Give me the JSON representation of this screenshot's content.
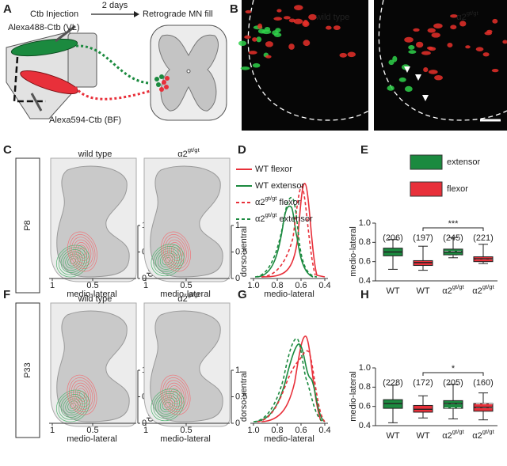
{
  "panel_a": {
    "letter": "A",
    "injection": "Ctb Injection",
    "delay": "2 days",
    "result": "Retrograde MN fill",
    "label_vl": "Alexa488-Ctb (VL)",
    "label_bf": "Alexa594-Ctb (BF)"
  },
  "panel_b": {
    "letter": "B",
    "wild_type": "wild type",
    "mutant": {
      "base": "α2",
      "sup": "gt/gt"
    }
  },
  "rows": [
    {
      "contour": {
        "letter": "C",
        "age": "P8",
        "wild_type": "wild type",
        "mutant": {
          "base": "α2",
          "sup": "gt/gt"
        },
        "x_label": "medio-lateral",
        "y_label": "dorso-ventral",
        "xlim": [
          1,
          0
        ],
        "xticks": [
          1,
          0.5
        ],
        "ylim": [
          0,
          1
        ],
        "yticks": [
          1,
          0.5,
          0
        ]
      },
      "density": {
        "letter": "D",
        "legend": [
          {
            "name": "WT flexor",
            "color": "#e8303a",
            "dashed": false
          },
          {
            "name": "WT extensor",
            "color": "#1b8a3f",
            "dashed": false
          },
          {
            "name": {
              "base": "α2",
              "sup": "gt/gt",
              "tail": " flexor"
            },
            "color": "#e8303a",
            "dashed": true
          },
          {
            "name": {
              "base": "α2",
              "sup": "gt/gt",
              "tail": " extensor"
            },
            "color": "#1b8a3f",
            "dashed": true
          }
        ],
        "x_label": "medio-lateral",
        "xlim": [
          1,
          0.4
        ],
        "xticks": [
          {
            "value": 1,
            "label": "1.0"
          },
          0.8,
          0.6,
          0.4
        ]
      },
      "box": {
        "type": "box",
        "letter": "E",
        "legend": [
          {
            "name": "extensor",
            "color": "#1b8a3f"
          },
          {
            "name": "flexor",
            "color": "#e8303a"
          }
        ],
        "y_label": "medio-lateral",
        "ylim": [
          0.4,
          1
        ],
        "yticks": [
          0.4,
          0.6,
          0.8,
          {
            "value": 1,
            "label": "1.0"
          }
        ],
        "categories": [
          "WT",
          "WT",
          {
            "base": "α2",
            "sup": "gt/gt"
          },
          {
            "base": "α2",
            "sup": "gt/gt"
          }
        ],
        "counts": [
          "(206)",
          "(197)",
          "(245)",
          "(221)"
        ],
        "significance": "***",
        "boxes": [
          {
            "min": 0.52,
            "q1": 0.66,
            "median": 0.7,
            "q3": 0.74,
            "max": 0.83,
            "color": "#1b8a3f",
            "hatched": false
          },
          {
            "min": 0.51,
            "q1": 0.56,
            "median": 0.59,
            "q3": 0.61,
            "max": 0.76,
            "color": "#e8303a",
            "hatched": false
          },
          {
            "min": 0.64,
            "q1": 0.67,
            "median": 0.7,
            "q3": 0.73,
            "max": 0.85,
            "color": "#1b8a3f",
            "hatched": true
          },
          {
            "min": 0.58,
            "q1": 0.6,
            "median": 0.63,
            "q3": 0.65,
            "max": 0.78,
            "color": "#e8303a",
            "hatched": true
          }
        ]
      }
    },
    {
      "contour": {
        "letter": "F",
        "age": "P33",
        "wild_type": "wild type",
        "mutant": {
          "base": "α2",
          "sup": "gt/gt"
        },
        "x_label": "medio-lateral",
        "y_label": "dorso-ventral",
        "xlim": [
          1,
          0
        ],
        "xticks": [
          1,
          0.5
        ],
        "ylim": [
          0,
          1
        ],
        "yticks": [
          1,
          0.5,
          0
        ]
      },
      "density": {
        "letter": "G",
        "x_label": "medio-lateral",
        "xlim": [
          1,
          0.4
        ],
        "xticks": [
          {
            "value": 1,
            "label": "1.0"
          },
          0.8,
          0.6,
          0.4
        ],
        "curve_colors": [
          "#e8303a",
          "#1b8a3f",
          "#e8303a",
          "#1b8a3f"
        ],
        "curve_dashed": [
          false,
          false,
          true,
          true
        ]
      },
      "box": {
        "type": "box",
        "letter": "H",
        "y_label": "medio-lateral",
        "ylim": [
          0.4,
          1
        ],
        "yticks": [
          0.4,
          0.6,
          0.8,
          {
            "value": 1,
            "label": "1.0"
          }
        ],
        "categories": [
          "WT",
          "WT",
          {
            "base": "α2",
            "sup": "gt/gt"
          },
          {
            "base": "α2",
            "sup": "gt/gt"
          }
        ],
        "counts": [
          "(228)",
          "(172)",
          "(205)",
          "(160)"
        ],
        "significance": "*",
        "boxes": [
          {
            "min": 0.43,
            "q1": 0.58,
            "median": 0.63,
            "q3": 0.67,
            "max": 0.82,
            "color": "#1b8a3f",
            "hatched": false
          },
          {
            "min": 0.48,
            "q1": 0.54,
            "median": 0.57,
            "q3": 0.61,
            "max": 0.71,
            "color": "#e8303a",
            "hatched": false
          },
          {
            "min": 0.47,
            "q1": 0.58,
            "median": 0.63,
            "q3": 0.66,
            "max": 0.83,
            "color": "#1b8a3f",
            "hatched": true
          },
          {
            "min": 0.46,
            "q1": 0.55,
            "median": 0.59,
            "q3": 0.63,
            "max": 0.74,
            "color": "#e8303a",
            "hatched": true
          }
        ]
      }
    }
  ]
}
